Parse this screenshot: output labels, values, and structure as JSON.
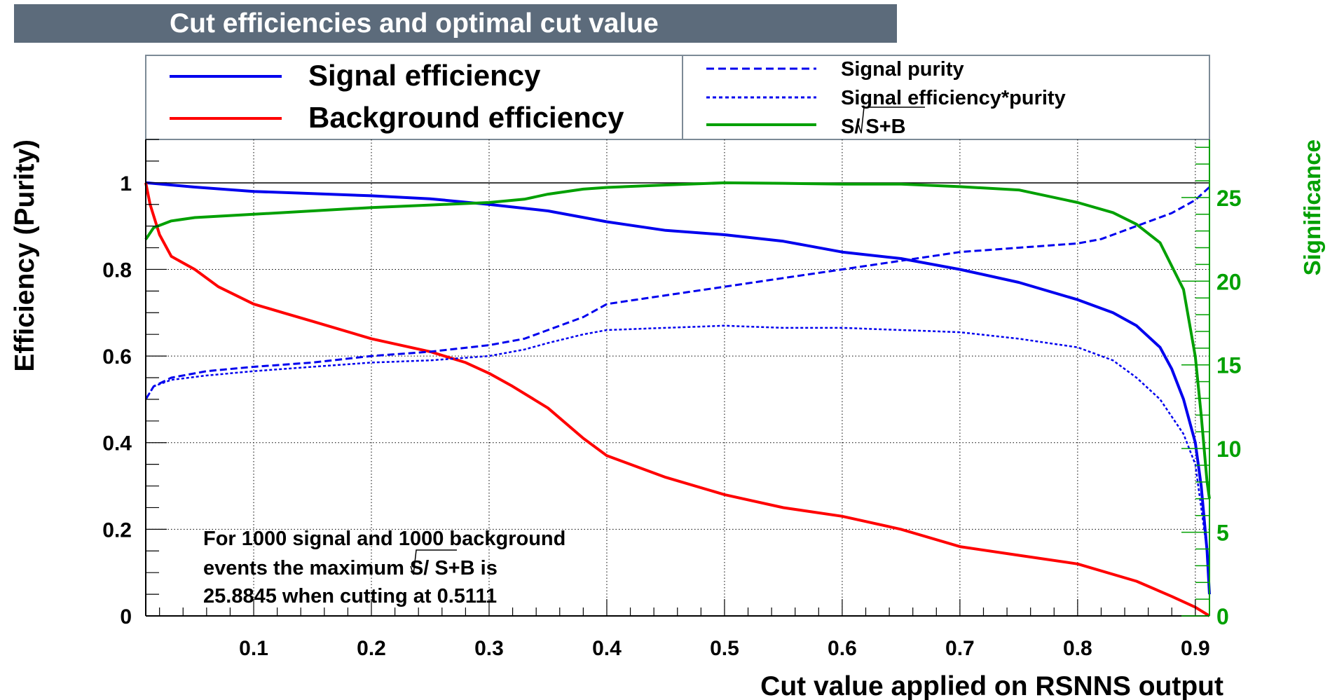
{
  "chart_data": {
    "type": "line",
    "title": "Cut efficiencies and optimal cut value",
    "xlabel": "Cut value applied on RSNNS output",
    "ylabel": "Efficiency (Purity)",
    "y2label": "Significance",
    "xlim": [
      0.0083,
      0.912
    ],
    "ylim": [
      0,
      1.1
    ],
    "y2lim": [
      0,
      28.47
    ],
    "grid": true,
    "x_ticks": [
      "0.1",
      "0.2",
      "0.3",
      "0.4",
      "0.5",
      "0.6",
      "0.7",
      "0.8",
      "0.9"
    ],
    "x_tick_values": [
      0.1,
      0.2,
      0.3,
      0.4,
      0.5,
      0.6,
      0.7,
      0.8,
      0.9
    ],
    "y_ticks": [
      "0",
      "0.2",
      "0.4",
      "0.6",
      "0.8",
      "1"
    ],
    "y_tick_values": [
      0,
      0.2,
      0.4,
      0.6,
      0.8,
      1
    ],
    "y2_ticks": [
      "0",
      "5",
      "10",
      "15",
      "20",
      "25"
    ],
    "y2_tick_values": [
      0,
      5,
      10,
      15,
      20,
      25
    ],
    "legend": {
      "placement": "top",
      "entries": [
        {
          "label": "Signal efficiency",
          "color": "#0000ee",
          "style": "solid"
        },
        {
          "label": "Background efficiency",
          "color": "#ff0000",
          "style": "solid"
        },
        {
          "label": "Signal purity",
          "color": "#0000ee",
          "style": "dashed"
        },
        {
          "label": "Signal efficiency*purity",
          "color": "#0000ee",
          "style": "dotted"
        },
        {
          "label": "S/√S+B",
          "label_main": "S/",
          "label_root": "S+B",
          "color": "#00a000",
          "style": "solid"
        }
      ]
    },
    "annotation": {
      "line1": "For 1000 signal and 1000 background",
      "line2_pre": "events the maximum S/",
      "line2_root": "S+B",
      "line2_post": " is",
      "line3": "25.8845 when cutting at 0.5111"
    },
    "max_significance": 25.8845,
    "optimal_cut": 0.5111,
    "series": [
      {
        "name": "Signal efficiency",
        "axis": "left",
        "color": "#0000ee",
        "style": "solid",
        "x": [
          0.0083,
          0.05,
          0.1,
          0.15,
          0.2,
          0.25,
          0.3,
          0.35,
          0.4,
          0.45,
          0.5,
          0.55,
          0.6,
          0.65,
          0.7,
          0.75,
          0.8,
          0.83,
          0.85,
          0.87,
          0.88,
          0.89,
          0.9,
          0.905,
          0.91,
          0.912
        ],
        "y": [
          1.0,
          0.99,
          0.98,
          0.975,
          0.97,
          0.963,
          0.95,
          0.935,
          0.91,
          0.89,
          0.88,
          0.865,
          0.84,
          0.825,
          0.8,
          0.77,
          0.73,
          0.7,
          0.67,
          0.62,
          0.57,
          0.5,
          0.4,
          0.3,
          0.15,
          0.05
        ]
      },
      {
        "name": "Background efficiency",
        "axis": "left",
        "color": "#ff0000",
        "style": "solid",
        "x": [
          0.0083,
          0.012,
          0.02,
          0.03,
          0.05,
          0.07,
          0.1,
          0.125,
          0.15,
          0.2,
          0.25,
          0.28,
          0.3,
          0.32,
          0.35,
          0.38,
          0.4,
          0.45,
          0.5,
          0.55,
          0.6,
          0.65,
          0.7,
          0.75,
          0.8,
          0.85,
          0.88,
          0.9,
          0.912
        ],
        "y": [
          1.0,
          0.95,
          0.88,
          0.83,
          0.8,
          0.76,
          0.72,
          0.7,
          0.68,
          0.64,
          0.61,
          0.585,
          0.56,
          0.53,
          0.48,
          0.41,
          0.37,
          0.32,
          0.28,
          0.25,
          0.23,
          0.2,
          0.16,
          0.14,
          0.12,
          0.08,
          0.045,
          0.02,
          0.0
        ]
      },
      {
        "name": "Signal purity",
        "axis": "left",
        "color": "#0000ee",
        "style": "dashed",
        "x": [
          0.0083,
          0.015,
          0.03,
          0.06,
          0.1,
          0.15,
          0.2,
          0.25,
          0.3,
          0.33,
          0.35,
          0.38,
          0.4,
          0.45,
          0.5,
          0.55,
          0.6,
          0.65,
          0.7,
          0.75,
          0.8,
          0.82,
          0.85,
          0.88,
          0.9,
          0.912
        ],
        "y": [
          0.5,
          0.53,
          0.55,
          0.565,
          0.575,
          0.585,
          0.6,
          0.61,
          0.625,
          0.64,
          0.66,
          0.69,
          0.72,
          0.74,
          0.76,
          0.78,
          0.8,
          0.82,
          0.84,
          0.85,
          0.86,
          0.87,
          0.9,
          0.93,
          0.96,
          0.99
        ]
      },
      {
        "name": "Signal efficiency*purity",
        "axis": "left",
        "color": "#0000ee",
        "style": "dotted",
        "x": [
          0.0083,
          0.015,
          0.03,
          0.06,
          0.1,
          0.15,
          0.2,
          0.25,
          0.3,
          0.33,
          0.35,
          0.38,
          0.4,
          0.45,
          0.5,
          0.55,
          0.6,
          0.65,
          0.7,
          0.75,
          0.8,
          0.83,
          0.85,
          0.87,
          0.89,
          0.9,
          0.91,
          0.912
        ],
        "y": [
          0.5,
          0.53,
          0.545,
          0.555,
          0.565,
          0.575,
          0.585,
          0.59,
          0.6,
          0.615,
          0.63,
          0.65,
          0.66,
          0.665,
          0.67,
          0.665,
          0.665,
          0.66,
          0.655,
          0.64,
          0.62,
          0.59,
          0.55,
          0.5,
          0.42,
          0.35,
          0.15,
          0.05
        ]
      },
      {
        "name": "S/√S+B",
        "axis": "right",
        "color": "#00a000",
        "style": "solid",
        "x": [
          0.0083,
          0.015,
          0.03,
          0.05,
          0.1,
          0.15,
          0.2,
          0.25,
          0.3,
          0.33,
          0.35,
          0.38,
          0.4,
          0.45,
          0.5,
          0.55,
          0.6,
          0.65,
          0.7,
          0.75,
          0.8,
          0.83,
          0.85,
          0.87,
          0.89,
          0.9,
          0.905,
          0.91,
          0.912
        ],
        "y": [
          22.5,
          23.2,
          23.6,
          23.8,
          24.0,
          24.2,
          24.4,
          24.55,
          24.7,
          24.9,
          25.2,
          25.5,
          25.6,
          25.75,
          25.88,
          25.85,
          25.8,
          25.8,
          25.65,
          25.45,
          24.7,
          24.1,
          23.4,
          22.3,
          19.5,
          15.5,
          12.0,
          8.0,
          7.0
        ]
      }
    ]
  }
}
